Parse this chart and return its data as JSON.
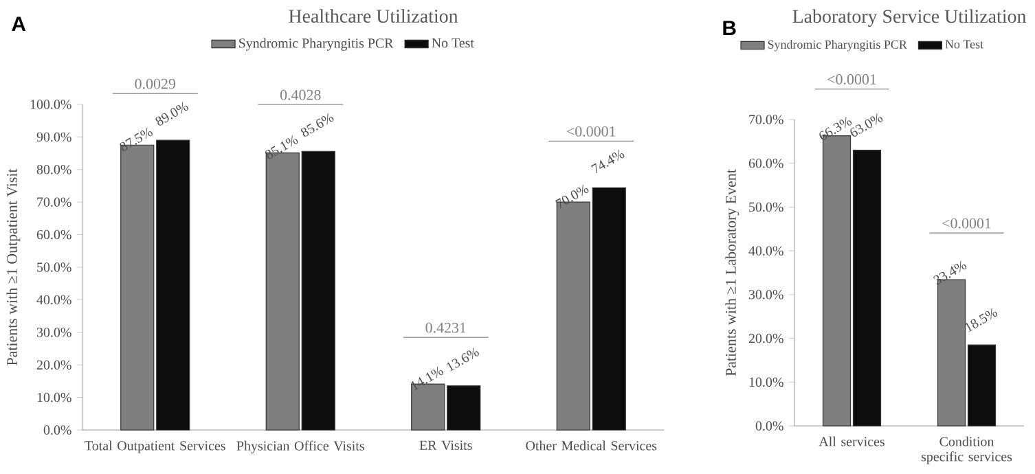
{
  "chart_data": [
    {
      "type": "bar",
      "title": "Healthcare Utilization",
      "ylabel": "Patients with ≥1 Outpatient Visit",
      "annotations": [
        "A",
        "0.0029",
        "0.4028",
        "0.4231",
        "<0.0001"
      ],
      "categories": [
        "Total Outpatient Services",
        "Physician Office Visits",
        "ER Visits",
        "Other Medical Services"
      ],
      "series": [
        {
          "name": "Syndromic Pharyngitis PCR",
          "color": "#7f7f7f",
          "values": [
            87.5,
            85.1,
            14.1,
            70.0
          ],
          "value_labels": [
            "87.5%",
            "85.1%",
            "14.1%",
            "70.0%"
          ]
        },
        {
          "name": "No Test",
          "color": "#0d0d0d",
          "values": [
            89.0,
            85.6,
            13.6,
            74.4
          ],
          "value_labels": [
            "89.0%",
            "85.6%",
            "13.6%",
            "74.4%"
          ]
        }
      ],
      "ylim": [
        0,
        100
      ],
      "yticks": [
        {
          "value": 0,
          "label": "0.0%"
        },
        {
          "value": 10,
          "label": "10.0%"
        },
        {
          "value": 20,
          "label": "20.0%"
        },
        {
          "value": 30,
          "label": "30.0%"
        },
        {
          "value": 40,
          "label": "40.0%"
        },
        {
          "value": 50,
          "label": "50.0%"
        },
        {
          "value": 60,
          "label": "60.0%"
        },
        {
          "value": 70,
          "label": "70.0%"
        },
        {
          "value": 80,
          "label": "80.0%"
        },
        {
          "value": 90,
          "label": "90.0%"
        },
        {
          "value": 100,
          "label": "100.0%"
        }
      ],
      "legend": "top"
    },
    {
      "type": "bar",
      "title": "Laboratory Service Utilization",
      "ylabel": "Patients with ≥1 Laboratory Event",
      "annotations": [
        "B",
        "<0.0001",
        "<0.0001"
      ],
      "categories": [
        "All services",
        "Condition specific services"
      ],
      "series": [
        {
          "name": "Syndromic Pharyngitis PCR",
          "color": "#7f7f7f",
          "values": [
            66.3,
            33.4
          ],
          "value_labels": [
            "66.3%",
            "33.4%"
          ]
        },
        {
          "name": "No Test",
          "color": "#0d0d0d",
          "values": [
            63.0,
            18.5
          ],
          "value_labels": [
            "63.0%",
            "18.5%"
          ]
        }
      ],
      "ylim": [
        0,
        70
      ],
      "yticks": [
        {
          "value": 0,
          "label": "0.0%"
        },
        {
          "value": 10,
          "label": "10.0%"
        },
        {
          "value": 20,
          "label": "20.0%"
        },
        {
          "value": 30,
          "label": "30.0%"
        },
        {
          "value": 40,
          "label": "40.0%"
        },
        {
          "value": 50,
          "label": "50.0%"
        },
        {
          "value": 60,
          "label": "60.0%"
        },
        {
          "value": 70,
          "label": "70.0%"
        }
      ],
      "legend": "top"
    }
  ]
}
